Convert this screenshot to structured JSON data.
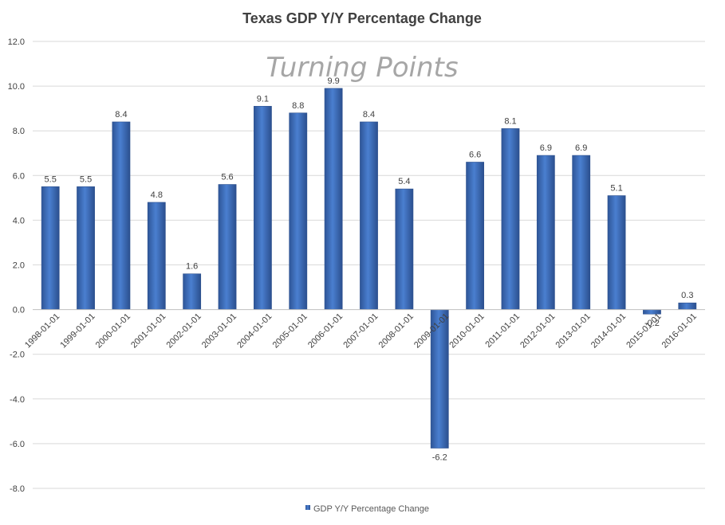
{
  "chart_data": {
    "type": "bar",
    "title": "Texas GDP  Y/Y Percentage Change",
    "watermark": "Turning Points",
    "xlabel": "",
    "ylabel": "",
    "ylim": [
      -8.0,
      12.0
    ],
    "ytick_step": 2.0,
    "grid": true,
    "legend_position": "bottom-center",
    "categories": [
      "1998-01-01",
      "1999-01-01",
      "2000-01-01",
      "2001-01-01",
      "2002-01-01",
      "2003-01-01",
      "2004-01-01",
      "2005-01-01",
      "2006-01-01",
      "2007-01-01",
      "2008-01-01",
      "2009-01-01",
      "2010-01-01",
      "2011-01-01",
      "2012-01-01",
      "2013-01-01",
      "2014-01-01",
      "2015-01-01",
      "2016-01-01"
    ],
    "series": [
      {
        "name": "GDP Y/Y Percentage Change",
        "values": [
          5.5,
          5.5,
          8.4,
          4.8,
          1.6,
          5.6,
          9.1,
          8.8,
          9.9,
          8.4,
          5.4,
          -6.2,
          6.6,
          8.1,
          6.9,
          6.9,
          5.1,
          -0.2,
          0.3
        ],
        "color": "#4472c4"
      }
    ]
  }
}
